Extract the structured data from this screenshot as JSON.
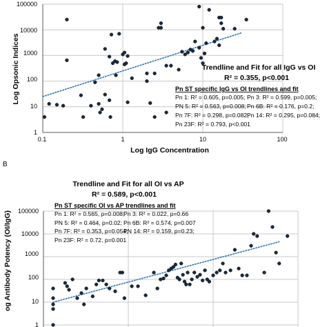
{
  "chart_data": [
    {
      "type": "scatter",
      "title": "",
      "xlabel": "Log IgG Concentration",
      "ylabel": "Log Opsonic Indices",
      "x_scale": "log",
      "y_scale": "log",
      "xlim": [
        0.1,
        100
      ],
      "ylim": [
        1,
        100000
      ],
      "x_ticks": [
        "0.1",
        "1",
        "10",
        "100"
      ],
      "y_ticks": [
        "1",
        "10",
        "100",
        "1000",
        "10000",
        "100000"
      ],
      "trendline": {
        "x": [
          0.1,
          30
        ],
        "y": [
          25,
          7500
        ],
        "style": "dotted",
        "color": "#2e75b6"
      },
      "annotation_title": "Trendline and Fit for all IgG vs OI",
      "annotation_r2": "R² = 0.355, p<0.001",
      "subheading": "Pn ST specific IgG vs OI trendlines and fit",
      "serotype_fits": [
        "Pn 1: R² = 0.605, p=0.005;",
        "Pn 3: R² = 0.599, p=0.005;",
        "PN 5: R² = 0.563, p=0.008;",
        "Pn 6B: R² = 0.176, p=0.2;",
        "Pn 7F: R² = 0.298, p=0.082;",
        "Pn 14: R² = 0.295, p=0.084;",
        "Pn 23F: R² = 0.793, p<0.001"
      ],
      "points": [
        {
          "x": 0.105,
          "y": 4
        },
        {
          "x": 0.12,
          "y": 13
        },
        {
          "x": 0.15,
          "y": 12
        },
        {
          "x": 0.18,
          "y": 11
        },
        {
          "x": 0.2,
          "y": 25000
        },
        {
          "x": 0.2,
          "y": 650
        },
        {
          "x": 0.3,
          "y": 28
        },
        {
          "x": 0.32,
          "y": 4
        },
        {
          "x": 0.4,
          "y": 11
        },
        {
          "x": 0.45,
          "y": 90
        },
        {
          "x": 0.5,
          "y": 170
        },
        {
          "x": 0.5,
          "y": 13
        },
        {
          "x": 0.52,
          "y": 6
        },
        {
          "x": 0.55,
          "y": 8
        },
        {
          "x": 0.6,
          "y": 30
        },
        {
          "x": 0.6,
          "y": 1800
        },
        {
          "x": 0.68,
          "y": 900
        },
        {
          "x": 0.68,
          "y": 18
        },
        {
          "x": 0.7,
          "y": 4
        },
        {
          "x": 0.72,
          "y": 6500
        },
        {
          "x": 0.75,
          "y": 500
        },
        {
          "x": 0.8,
          "y": 600
        },
        {
          "x": 0.82,
          "y": 170
        },
        {
          "x": 0.85,
          "y": 550
        },
        {
          "x": 0.9,
          "y": 7000
        },
        {
          "x": 1.0,
          "y": 1100
        },
        {
          "x": 1.05,
          "y": 1300
        },
        {
          "x": 1.05,
          "y": 450
        },
        {
          "x": 1.1,
          "y": 500
        },
        {
          "x": 1.15,
          "y": 950
        },
        {
          "x": 1.15,
          "y": 15
        },
        {
          "x": 1.3,
          "y": 130
        },
        {
          "x": 2.0,
          "y": 100
        },
        {
          "x": 2.0,
          "y": 200
        },
        {
          "x": 2.2,
          "y": 14
        },
        {
          "x": 2.5,
          "y": 200
        },
        {
          "x": 2.5,
          "y": 4
        },
        {
          "x": 2.8,
          "y": 12000
        },
        {
          "x": 3.0,
          "y": 18000
        },
        {
          "x": 3.0,
          "y": 12000
        },
        {
          "x": 3.5,
          "y": 400
        },
        {
          "x": 3.5,
          "y": 6
        },
        {
          "x": 4.0,
          "y": 400
        },
        {
          "x": 5.0,
          "y": 280
        },
        {
          "x": 5.5,
          "y": 1400
        },
        {
          "x": 6.0,
          "y": 1100
        },
        {
          "x": 6.5,
          "y": 1300
        },
        {
          "x": 7.0,
          "y": 1700
        },
        {
          "x": 7.5,
          "y": 1500
        },
        {
          "x": 8.0,
          "y": 3500
        },
        {
          "x": 9.0,
          "y": 80000
        },
        {
          "x": 9.0,
          "y": 2000
        },
        {
          "x": 9.5,
          "y": 800
        },
        {
          "x": 10.0,
          "y": 12000
        },
        {
          "x": 10.0,
          "y": 500
        },
        {
          "x": 10.5,
          "y": 1200
        },
        {
          "x": 11.0,
          "y": 3000
        },
        {
          "x": 12.0,
          "y": 60000
        },
        {
          "x": 14.0,
          "y": 3500
        },
        {
          "x": 15.0,
          "y": 4500
        },
        {
          "x": 16.0,
          "y": 2500
        },
        {
          "x": 16.0,
          "y": 30000
        },
        {
          "x": 17.0,
          "y": 30000
        },
        {
          "x": 17.0,
          "y": 18000
        },
        {
          "x": 18.0,
          "y": 11000
        },
        {
          "x": 25.0,
          "y": 11000
        },
        {
          "x": 35.0,
          "y": 25000
        }
      ]
    },
    {
      "type": "scatter",
      "panel_label": "B",
      "title": "",
      "xlabel": "",
      "ylabel": "og Antibody Potency (OI/IgG)",
      "x_scale": "log",
      "y_scale": "log",
      "xlim": [
        0.1,
        100
      ],
      "ylim": [
        1,
        100000
      ],
      "x_ticks": [],
      "y_ticks": [
        "1",
        "10",
        "100",
        "1000",
        "10000",
        "100000"
      ],
      "trendline": {
        "x": [
          0.13,
          60
        ],
        "y": [
          10,
          4500
        ],
        "style": "dotted",
        "color": "#2e75b6"
      },
      "annotation_title": "Trendline and Fit for all OI vs AP",
      "annotation_r2": "R² = 0.589, p<0.001",
      "subheading": "Pn ST specific OI vs AP trendlines and fit",
      "serotype_fits": [
        "Pn 1: R² = 0.565, p=0.008;",
        "Pn 3: R² = 0.022, p=0.66",
        "PN 5: R² = 0.464, p=0.02;",
        "Pn 6B: R² = 0.574, p=0.007",
        "Pn 7F: R² = 0.353, p=0.054;",
        "PN 14: R² = 0.159, p=0.23;",
        "Pn 23F: R² = 0.72, p=0.001"
      ],
      "points": [
        {
          "x": 0.13,
          "y": 40
        },
        {
          "x": 0.13,
          "y": 15
        },
        {
          "x": 0.13,
          "y": 8
        },
        {
          "x": 0.13,
          "y": 5
        },
        {
          "x": 0.13,
          "y": 1
        },
        {
          "x": 0.18,
          "y": 70
        },
        {
          "x": 0.19,
          "y": 50
        },
        {
          "x": 0.2,
          "y": 35
        },
        {
          "x": 0.22,
          "y": 100
        },
        {
          "x": 0.25,
          "y": 15
        },
        {
          "x": 0.28,
          "y": 25
        },
        {
          "x": 0.3,
          "y": 8
        },
        {
          "x": 0.32,
          "y": 40
        },
        {
          "x": 0.38,
          "y": 18
        },
        {
          "x": 0.42,
          "y": 60
        },
        {
          "x": 0.45,
          "y": 90
        },
        {
          "x": 0.5,
          "y": 90
        },
        {
          "x": 0.55,
          "y": 60
        },
        {
          "x": 0.6,
          "y": 40
        },
        {
          "x": 0.7,
          "y": 30
        },
        {
          "x": 0.8,
          "y": 200
        },
        {
          "x": 0.85,
          "y": 200
        },
        {
          "x": 0.9,
          "y": 15
        },
        {
          "x": 1.1,
          "y": 50
        },
        {
          "x": 1.3,
          "y": 50
        },
        {
          "x": 1.6,
          "y": 20
        },
        {
          "x": 2.0,
          "y": 200
        },
        {
          "x": 2.2,
          "y": 40
        },
        {
          "x": 2.4,
          "y": 100
        },
        {
          "x": 2.6,
          "y": 110
        },
        {
          "x": 2.8,
          "y": 150
        },
        {
          "x": 3.0,
          "y": 250
        },
        {
          "x": 3.2,
          "y": 300
        },
        {
          "x": 3.4,
          "y": 350
        },
        {
          "x": 3.6,
          "y": 450
        },
        {
          "x": 3.8,
          "y": 120
        },
        {
          "x": 4.0,
          "y": 100
        },
        {
          "x": 4.2,
          "y": 500
        },
        {
          "x": 4.4,
          "y": 160
        },
        {
          "x": 4.6,
          "y": 80
        },
        {
          "x": 4.8,
          "y": 60
        },
        {
          "x": 5.0,
          "y": 200
        },
        {
          "x": 5.3,
          "y": 60
        },
        {
          "x": 5.6,
          "y": 100
        },
        {
          "x": 6.0,
          "y": 200
        },
        {
          "x": 6.5,
          "y": 130
        },
        {
          "x": 7.0,
          "y": 160
        },
        {
          "x": 7.5,
          "y": 90
        },
        {
          "x": 8.0,
          "y": 250
        },
        {
          "x": 8.5,
          "y": 100
        },
        {
          "x": 9.0,
          "y": 80
        },
        {
          "x": 10.0,
          "y": 150
        },
        {
          "x": 11.0,
          "y": 200
        },
        {
          "x": 12.0,
          "y": 250
        },
        {
          "x": 13.0,
          "y": 500
        },
        {
          "x": 14.0,
          "y": 200
        },
        {
          "x": 16.0,
          "y": 250
        },
        {
          "x": 18.0,
          "y": 2000
        },
        {
          "x": 20.0,
          "y": 300
        },
        {
          "x": 22.0,
          "y": 150
        },
        {
          "x": 25.0,
          "y": 150
        },
        {
          "x": 28.0,
          "y": 3000
        },
        {
          "x": 30.0,
          "y": 10000
        },
        {
          "x": 33.0,
          "y": 8000
        },
        {
          "x": 40.0,
          "y": 200
        },
        {
          "x": 45.0,
          "y": 100000
        },
        {
          "x": 50.0,
          "y": 20000
        },
        {
          "x": 55.0,
          "y": 1500
        },
        {
          "x": 60.0,
          "y": 500
        },
        {
          "x": 75.0,
          "y": 8000
        }
      ]
    }
  ]
}
